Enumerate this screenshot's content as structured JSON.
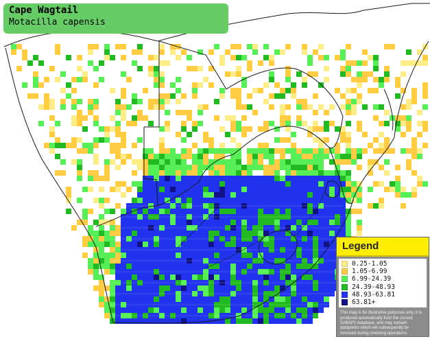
{
  "title": {
    "common_name": "Cape Wagtail",
    "scientific_name": "Motacilla capensis"
  },
  "legend": {
    "header": "Legend",
    "items": [
      {
        "label": "0.25-1.05",
        "color": "#ffee88"
      },
      {
        "label": "1.05-6.99",
        "color": "#ffcc44"
      },
      {
        "label": "6.99-24.39",
        "color": "#55ee55"
      },
      {
        "label": "24.39-48.93",
        "color": "#22bb22"
      },
      {
        "label": "48.93-63.81",
        "color": "#2233ee"
      },
      {
        "label": "63.81+",
        "color": "#111188"
      }
    ],
    "disclaimer": "This map is for illustrative purposes only; it is produced automatically from the current SABAP2 database, and may contain datapoints which will subsequently be removed during checking operations."
  },
  "map_colors": {
    "background": "#ffffff",
    "borders": "#222222",
    "yellow": "#ffcc44",
    "pale_yellow": "#ffee88",
    "light_green": "#55ee55",
    "green": "#22bb22",
    "blue": "#2233ee",
    "dark_blue": "#111188"
  }
}
